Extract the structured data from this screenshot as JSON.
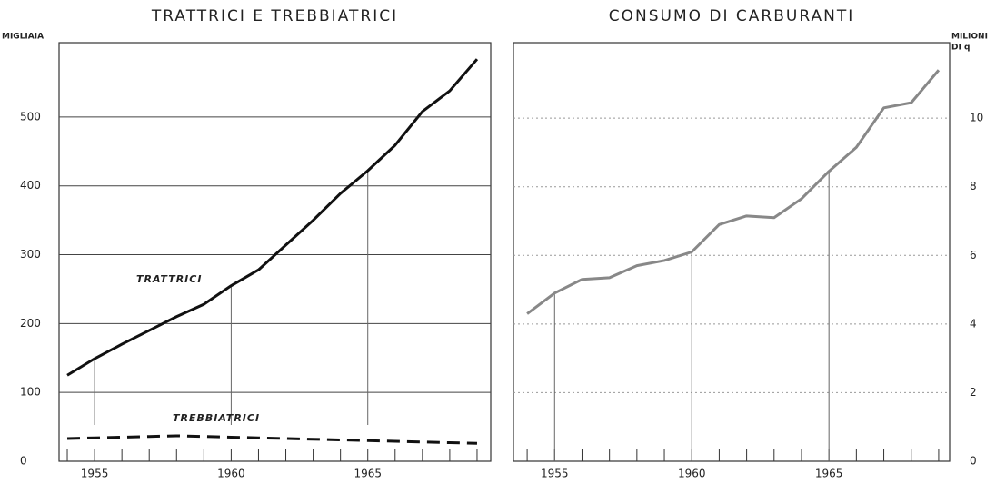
{
  "chart_data": [
    {
      "type": "line",
      "title": "TRATTRICI E TREBBIATRICI",
      "y_label_lines": [
        "MIGLIAIA"
      ],
      "y_axis_side": "left",
      "grid": "solid",
      "x": [
        1954,
        1955,
        1956,
        1957,
        1958,
        1959,
        1960,
        1961,
        1962,
        1963,
        1964,
        1965,
        1966,
        1967,
        1968,
        1969
      ],
      "xlim": [
        1953.7,
        1969.5
      ],
      "xticks": [
        1955,
        1960,
        1965
      ],
      "ylim": [
        0,
        608
      ],
      "yticks": [
        0,
        100,
        200,
        300,
        400,
        500
      ],
      "series": [
        {
          "name": "TRATTRICI",
          "color": "#111111",
          "dashed": false,
          "values": [
            125,
            149,
            170,
            190,
            210,
            228,
            255,
            278,
            314,
            350,
            389,
            422,
            459,
            508,
            538,
            584
          ]
        },
        {
          "name": "TREBBIATRICI",
          "color": "#111111",
          "dashed": true,
          "values": [
            33,
            34,
            35,
            36,
            37,
            36,
            35,
            34,
            33,
            32,
            31,
            30,
            29,
            28,
            27,
            26
          ]
        }
      ]
    },
    {
      "type": "line",
      "title": "CONSUMO DI CARBURANTI",
      "y_label_lines": [
        "MILIONI",
        "DI q"
      ],
      "y_axis_side": "right",
      "grid": "dotted",
      "x": [
        1954,
        1955,
        1956,
        1957,
        1958,
        1959,
        1960,
        1961,
        1962,
        1963,
        1964,
        1965,
        1966,
        1967,
        1968,
        1969
      ],
      "xlim": [
        1953.5,
        1969.4
      ],
      "xticks": [
        1955,
        1960,
        1965
      ],
      "ylim": [
        0,
        12.2
      ],
      "yticks": [
        0,
        2,
        4,
        6,
        8,
        10
      ],
      "series": [
        {
          "color": "#888888",
          "dashed": false,
          "values": [
            4.3,
            4.9,
            5.3,
            5.35,
            5.7,
            5.85,
            6.1,
            6.9,
            7.15,
            7.1,
            7.65,
            8.45,
            9.15,
            10.3,
            10.45,
            11.4
          ]
        }
      ]
    }
  ]
}
